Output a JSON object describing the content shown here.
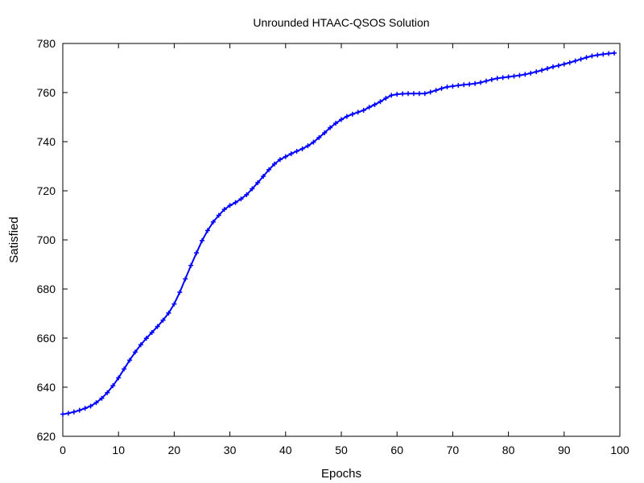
{
  "chart_data": {
    "type": "line",
    "title": "Unrounded HTAAC-QSOS Solution",
    "xlabel": "Epochs",
    "ylabel": "Satisfied",
    "xlim": [
      0,
      100
    ],
    "ylim": [
      620,
      780
    ],
    "xticks": [
      0,
      10,
      20,
      30,
      40,
      50,
      60,
      70,
      80,
      90,
      100
    ],
    "yticks": [
      620,
      640,
      660,
      680,
      700,
      720,
      740,
      760,
      780
    ],
    "grid": false,
    "legend": "none",
    "marker": "plus",
    "series": [
      {
        "color": "#0000ff",
        "x": [
          0,
          1,
          2,
          3,
          4,
          5,
          6,
          7,
          8,
          9,
          10,
          11,
          12,
          13,
          14,
          15,
          16,
          17,
          18,
          19,
          20,
          21,
          22,
          23,
          24,
          25,
          26,
          27,
          28,
          29,
          30,
          31,
          32,
          33,
          34,
          35,
          36,
          37,
          38,
          39,
          40,
          41,
          42,
          43,
          44,
          45,
          46,
          47,
          48,
          49,
          50,
          51,
          52,
          53,
          54,
          55,
          56,
          57,
          58,
          59,
          60,
          61,
          62,
          63,
          64,
          65,
          66,
          67,
          68,
          69,
          70,
          71,
          72,
          73,
          74,
          75,
          76,
          77,
          78,
          79,
          80,
          81,
          82,
          83,
          84,
          85,
          86,
          87,
          88,
          89,
          90,
          91,
          92,
          93,
          94,
          95,
          96,
          97,
          98,
          99
        ],
        "values": [
          629.0,
          629.4,
          629.9,
          630.6,
          631.4,
          632.3,
          633.7,
          635.5,
          637.8,
          640.6,
          643.8,
          647.4,
          651.0,
          654.3,
          657.3,
          659.9,
          662.3,
          664.7,
          667.3,
          670.2,
          673.9,
          678.7,
          684.1,
          689.6,
          694.7,
          699.7,
          703.8,
          707.3,
          710.0,
          712.4,
          714.0,
          715.2,
          716.7,
          718.4,
          720.8,
          723.3,
          725.9,
          728.6,
          730.9,
          732.7,
          733.9,
          735.1,
          736.1,
          737.1,
          738.3,
          739.8,
          741.7,
          743.6,
          745.7,
          747.5,
          749.0,
          750.3,
          751.2,
          752.0,
          752.8,
          754.0,
          755.1,
          756.3,
          757.7,
          758.9,
          759.3,
          759.5,
          759.6,
          759.6,
          759.6,
          759.6,
          760.2,
          760.9,
          761.7,
          762.3,
          762.6,
          762.9,
          763.2,
          763.4,
          763.7,
          764.1,
          764.7,
          765.3,
          765.8,
          766.1,
          766.4,
          766.7,
          767.0,
          767.4,
          767.9,
          768.5,
          769.1,
          769.8,
          770.5,
          771.0,
          771.6,
          772.2,
          772.9,
          773.6,
          774.3,
          774.9,
          775.3,
          775.6,
          775.9,
          776.1
        ]
      }
    ]
  }
}
